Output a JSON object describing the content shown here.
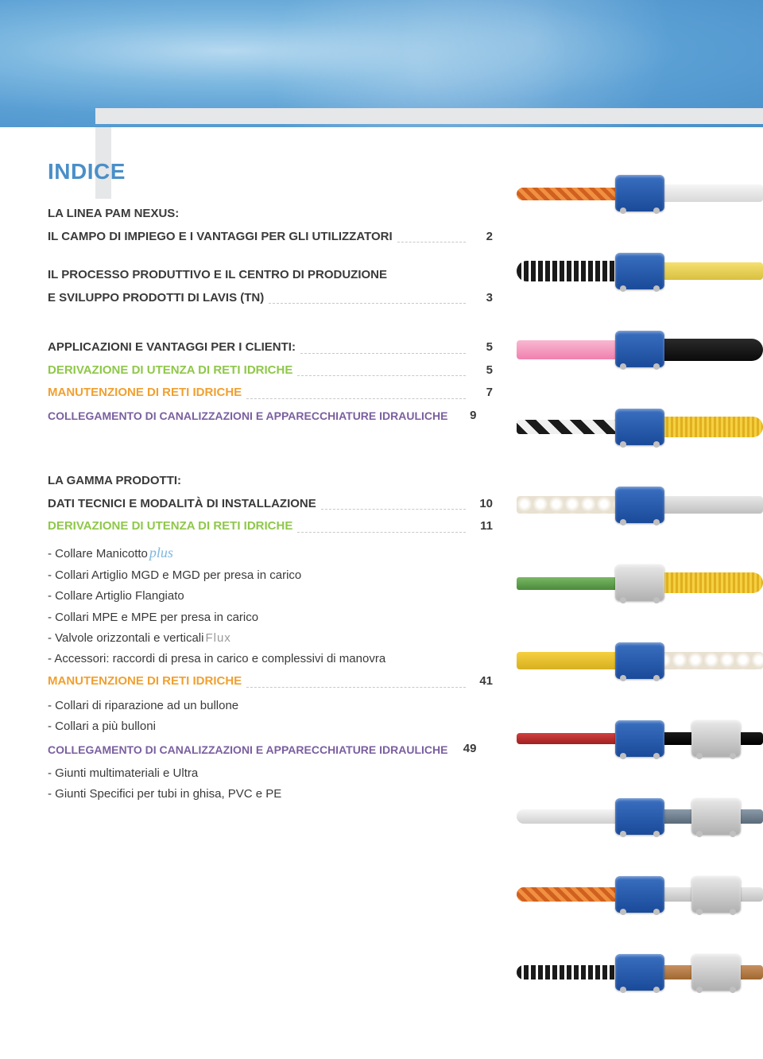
{
  "title": "INDICE",
  "title_color": "#4a8fc8",
  "section1": {
    "line1": "LA LINEA PAM NEXUS:",
    "line2": "IL CAMPO DI IMPIEGO E I VANTAGGI PER GLI UTILIZZATORI",
    "line2_page": "2",
    "line3a": "IL PROCESSO PRODUTTIVO E IL CENTRO DI PRODUZIONE",
    "line3b": "E SVILUPPO PRODOTTI DI LAVIS (TN)",
    "line3_page": "3"
  },
  "section2": {
    "heading": "APPLICAZIONI E VANTAGGI PER I CLIENTI:",
    "heading_page": "5",
    "items": [
      {
        "label": "DERIVAZIONE DI UTENZA DI RETI IDRICHE",
        "page": "5",
        "color": "#8fc74a"
      },
      {
        "label": "MANUTENZIONE DI RETI IDRICHE",
        "page": "7",
        "color": "#f0a030"
      },
      {
        "label": "COLLEGAMENTO DI CANALIZZAZIONI E APPARECCHIATURE IDRAULICHE",
        "page": "9",
        "color": "#7a5fa0"
      }
    ]
  },
  "section3": {
    "heading": "LA GAMMA PRODOTTI:",
    "row1": {
      "label": "DATI TECNICI E MODALITÀ DI INSTALLAZIONE",
      "page": "10"
    },
    "row2": {
      "label": "DERIVAZIONE DI UTENZA DI RETI IDRICHE",
      "page": "11",
      "color": "#8fc74a"
    },
    "green_items": [
      "- Collare Manicotto",
      "- Collari Artiglio MGD e MGD per presa in carico",
      "- Collare Artiglio Flangiato",
      "- Collari MPE e MPE per presa in carico",
      "- Valvole orizzontali e verticali",
      "- Accessori: raccordi di presa in carico e complessivi di manovra"
    ],
    "plus_word": "plus",
    "flux_word": "Flux",
    "row3": {
      "label": "MANUTENZIONE DI RETI IDRICHE",
      "page": "41",
      "color": "#f0a030"
    },
    "orange_items": [
      "- Collari di riparazione ad un bullone",
      "- Collari a più bulloni"
    ],
    "row4": {
      "label": "COLLEGAMENTO DI CANALIZZAZIONI E APPARECCHIATURE IDRAULICHE",
      "page": "49",
      "color": "#7a5fa0"
    },
    "purple_items": [
      "- Giunti multimateriali e Ultra",
      "- Giunti Specifici per tubi in ghisa, PVC e PE"
    ]
  },
  "products": [
    {
      "left_color": "linear-gradient(#f08030,#c05a10) repeating-linear-gradient(45deg,#f09040 0 5px,#d06020 5px 10px)",
      "left_style": "background:repeating-linear-gradient(45deg,#f09040 0 5px,#d06020 5px 10px);height:16px;top:26px;border-radius:8px",
      "right_style": "background:linear-gradient(#f5f5f5,#d8d8d8);",
      "fitting": "blue"
    },
    {
      "left_style": "background:repeating-linear-gradient(90deg,#1a1a1a 0 6px,#fff 6px 9px);height:26px;top:20px;border-radius:13px",
      "right_style": "background:linear-gradient(#f5e070,#d8c040);",
      "fitting": "blue"
    },
    {
      "left_style": "background:linear-gradient(#f8b8d0,#f080b0);height:24px;top:22px;border-radius:4px",
      "right_style": "background:linear-gradient(#2a2a2a,#0a0a0a);height:28px;top:20px;border-radius:14px",
      "right_extra": "yellow-grip",
      "fitting": "blue"
    },
    {
      "left_style": "background:repeating-linear-gradient(45deg,#1a1a1a 0 10px,#f0f0f0 10px 20px);height:18px;top:24px;border-radius:4px",
      "right_style": "background:repeating-linear-gradient(90deg,#f5d040 0 3px,#e0b020 3px 6px);height:26px;top:20px;border-radius:13px",
      "fitting": "blue"
    },
    {
      "left_style": "background:radial-gradient(circle,#fff 30%,#e8e0d0 70%);background-size:20px 20px;height:22px;top:22px",
      "right_style": "background:linear-gradient(#e8e8e8,#c0c0c0);",
      "fitting": "blue"
    },
    {
      "left_style": "background:linear-gradient(#7ab865,#4a8a3a);height:16px;top:26px;border-radius:3px",
      "right_style": "background:repeating-linear-gradient(90deg,#f5d040 0 3px,#e0b020 3px 6px);height:26px;top:20px;border-radius:13px",
      "fitting": "silver"
    },
    {
      "left_style": "background:linear-gradient(#f5d040,#d8b020);",
      "right_style": "background:radial-gradient(circle,#fff 30%,#e8e0d0 70%);background-size:20px 20px;height:22px;top:22px",
      "fitting": "blue"
    },
    {
      "left_style": "background:linear-gradient(#d04040,#a02020);height:14px;top:26px",
      "right_style": "background:linear-gradient(#1a1a1a,#000);height:16px;top:25px",
      "fitting": "blue",
      "double_fitting": true
    }
  ]
}
